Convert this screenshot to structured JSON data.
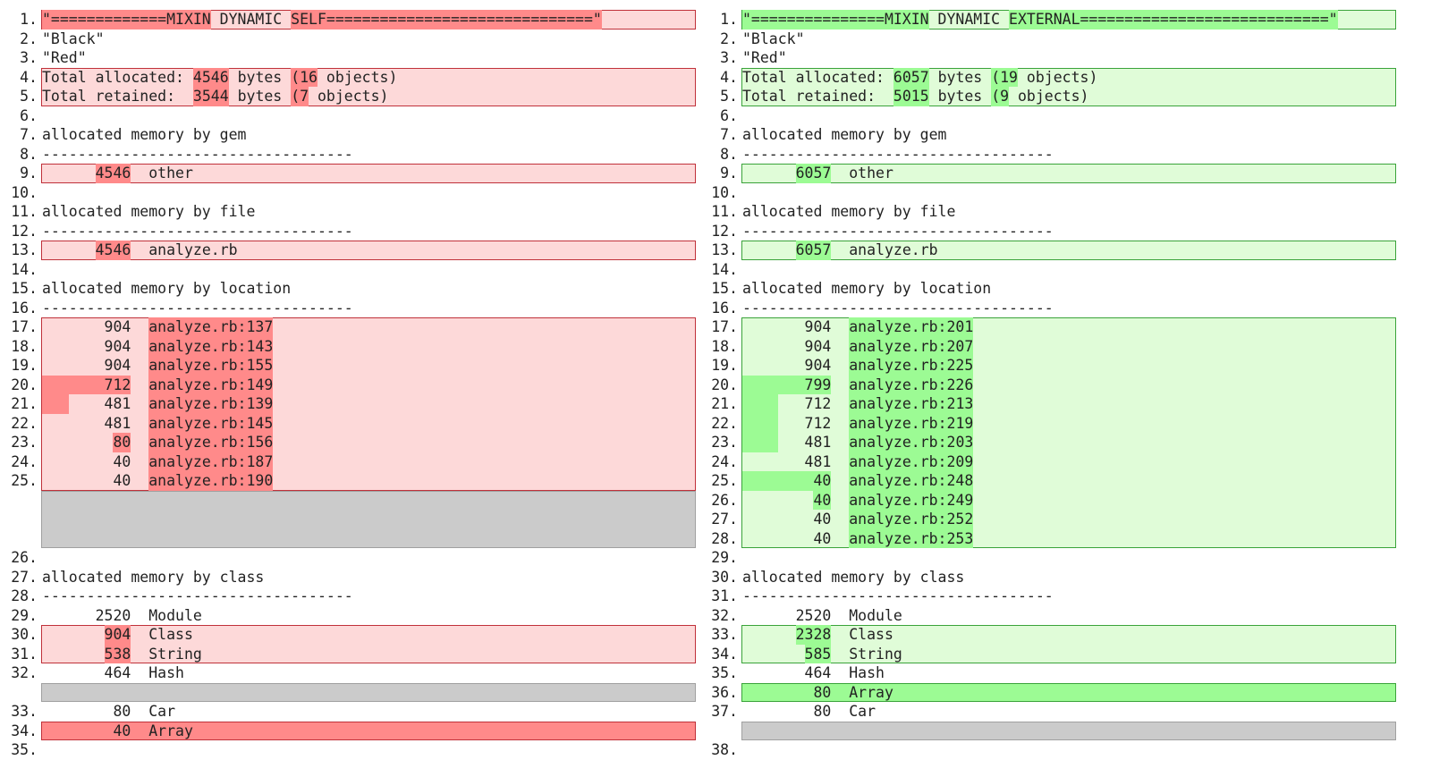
{
  "left": {
    "rows": [
      {
        "num": "1.",
        "kind": "changed",
        "parts": [
          {
            "text": "\"=============MIXIN",
            "mark": true
          },
          {
            "text": " DYNAMIC "
          },
          {
            "text": "SELF==============================\"",
            "mark": true
          }
        ]
      },
      {
        "num": "2.",
        "kind": "same",
        "parts": [
          {
            "text": "\"Black\""
          }
        ]
      },
      {
        "num": "3.",
        "kind": "same",
        "parts": [
          {
            "text": "\"Red\""
          }
        ]
      },
      {
        "num": "4.",
        "kind": "changed",
        "parts": [
          {
            "text": "Total allocated: "
          },
          {
            "text": "4546",
            "mark": true
          },
          {
            "text": " bytes "
          },
          {
            "text": "(16",
            "mark": true
          },
          {
            "text": " objects)"
          }
        ]
      },
      {
        "num": "5.",
        "kind": "changed",
        "parts": [
          {
            "text": "Total retained:  "
          },
          {
            "text": "3544",
            "mark": true
          },
          {
            "text": " bytes "
          },
          {
            "text": "(7",
            "mark": true
          },
          {
            "text": " objects)"
          }
        ]
      },
      {
        "num": "6.",
        "kind": "same",
        "parts": []
      },
      {
        "num": "7.",
        "kind": "same",
        "parts": [
          {
            "text": "allocated memory by gem"
          }
        ]
      },
      {
        "num": "8.",
        "kind": "same",
        "parts": [
          {
            "text": "-----------------------------------"
          }
        ]
      },
      {
        "num": "9.",
        "kind": "changed",
        "parts": [
          {
            "text": "      "
          },
          {
            "text": "4546",
            "mark": true
          },
          {
            "text": "  other"
          }
        ]
      },
      {
        "num": "10.",
        "kind": "same",
        "parts": []
      },
      {
        "num": "11.",
        "kind": "same",
        "parts": [
          {
            "text": "allocated memory by file"
          }
        ]
      },
      {
        "num": "12.",
        "kind": "same",
        "parts": [
          {
            "text": "-----------------------------------"
          }
        ]
      },
      {
        "num": "13.",
        "kind": "changed",
        "parts": [
          {
            "text": "      "
          },
          {
            "text": "4546",
            "mark": true
          },
          {
            "text": "  analyze.rb"
          }
        ]
      },
      {
        "num": "14.",
        "kind": "same",
        "parts": []
      },
      {
        "num": "15.",
        "kind": "same",
        "parts": [
          {
            "text": "allocated memory by location"
          }
        ]
      },
      {
        "num": "16.",
        "kind": "same",
        "parts": [
          {
            "text": "-----------------------------------"
          }
        ]
      },
      {
        "num": "17.",
        "kind": "changed",
        "parts": [
          {
            "text": "       904  "
          },
          {
            "text": "analyze.rb:137",
            "mark": true
          }
        ]
      },
      {
        "num": "18.",
        "kind": "changed",
        "parts": [
          {
            "text": "       904  "
          },
          {
            "text": "analyze.rb:143",
            "mark": true
          }
        ]
      },
      {
        "num": "19.",
        "kind": "changed",
        "parts": [
          {
            "text": "       904  "
          },
          {
            "text": "analyze.rb:155",
            "mark": true
          }
        ]
      },
      {
        "num": "20.",
        "kind": "changed",
        "parts": [
          {
            "text": "       712",
            "mark": true
          },
          {
            "text": "  "
          },
          {
            "text": "analyze.rb:149",
            "mark": true
          }
        ]
      },
      {
        "num": "21.",
        "kind": "changed",
        "parts": [
          {
            "text": "   ",
            "mark": true
          },
          {
            "text": "    481  "
          },
          {
            "text": "analyze.rb:139",
            "mark": true
          }
        ]
      },
      {
        "num": "22.",
        "kind": "changed",
        "parts": [
          {
            "text": "       481  "
          },
          {
            "text": "analyze.rb:145",
            "mark": true
          }
        ]
      },
      {
        "num": "23.",
        "kind": "changed",
        "parts": [
          {
            "text": "        "
          },
          {
            "text": "80",
            "mark": true
          },
          {
            "text": "  "
          },
          {
            "text": "analyze.rb:156",
            "mark": true
          }
        ]
      },
      {
        "num": "24.",
        "kind": "changed",
        "parts": [
          {
            "text": "        40  "
          },
          {
            "text": "analyze.rb:187",
            "mark": true
          }
        ]
      },
      {
        "num": "25.",
        "kind": "changed",
        "parts": [
          {
            "text": "        40  "
          },
          {
            "text": "analyze.rb:190",
            "mark": true
          }
        ]
      },
      {
        "kind": "filler"
      },
      {
        "kind": "filler"
      },
      {
        "kind": "filler"
      },
      {
        "num": "26.",
        "kind": "same",
        "parts": []
      },
      {
        "num": "27.",
        "kind": "same",
        "parts": [
          {
            "text": "allocated memory by class"
          }
        ]
      },
      {
        "num": "28.",
        "kind": "same",
        "parts": [
          {
            "text": "-----------------------------------"
          }
        ]
      },
      {
        "num": "29.",
        "kind": "same",
        "parts": [
          {
            "text": "      2520  Module"
          }
        ]
      },
      {
        "num": "30.",
        "kind": "changed",
        "parts": [
          {
            "text": "       "
          },
          {
            "text": "904",
            "mark": true
          },
          {
            "text": "  Class"
          }
        ]
      },
      {
        "num": "31.",
        "kind": "changed",
        "parts": [
          {
            "text": "       "
          },
          {
            "text": "538",
            "mark": true
          },
          {
            "text": "  String"
          }
        ]
      },
      {
        "num": "32.",
        "kind": "same",
        "parts": [
          {
            "text": "       464  Hash"
          }
        ]
      },
      {
        "kind": "filler"
      },
      {
        "num": "33.",
        "kind": "same",
        "parts": [
          {
            "text": "        80  Car"
          }
        ]
      },
      {
        "num": "34.",
        "kind": "strong",
        "parts": [
          {
            "text": "        40  Array"
          }
        ]
      },
      {
        "num": "35.",
        "kind": "same",
        "parts": []
      }
    ]
  },
  "right": {
    "rows": [
      {
        "num": "1.",
        "kind": "changed",
        "parts": [
          {
            "text": "\"===============MIXIN",
            "mark": true
          },
          {
            "text": " DYNAMIC "
          },
          {
            "text": "EXTERNAL============================\"",
            "mark": true
          }
        ]
      },
      {
        "num": "2.",
        "kind": "same",
        "parts": [
          {
            "text": "\"Black\""
          }
        ]
      },
      {
        "num": "3.",
        "kind": "same",
        "parts": [
          {
            "text": "\"Red\""
          }
        ]
      },
      {
        "num": "4.",
        "kind": "changed",
        "parts": [
          {
            "text": "Total allocated: "
          },
          {
            "text": "6057",
            "mark": true
          },
          {
            "text": " bytes "
          },
          {
            "text": "(19",
            "mark": true
          },
          {
            "text": " objects)"
          }
        ]
      },
      {
        "num": "5.",
        "kind": "changed",
        "parts": [
          {
            "text": "Total retained:  "
          },
          {
            "text": "5015",
            "mark": true
          },
          {
            "text": " bytes "
          },
          {
            "text": "(9",
            "mark": true
          },
          {
            "text": " objects)"
          }
        ]
      },
      {
        "num": "6.",
        "kind": "same",
        "parts": []
      },
      {
        "num": "7.",
        "kind": "same",
        "parts": [
          {
            "text": "allocated memory by gem"
          }
        ]
      },
      {
        "num": "8.",
        "kind": "same",
        "parts": [
          {
            "text": "-----------------------------------"
          }
        ]
      },
      {
        "num": "9.",
        "kind": "changed",
        "parts": [
          {
            "text": "      "
          },
          {
            "text": "6057",
            "mark": true
          },
          {
            "text": "  other"
          }
        ]
      },
      {
        "num": "10.",
        "kind": "same",
        "parts": []
      },
      {
        "num": "11.",
        "kind": "same",
        "parts": [
          {
            "text": "allocated memory by file"
          }
        ]
      },
      {
        "num": "12.",
        "kind": "same",
        "parts": [
          {
            "text": "-----------------------------------"
          }
        ]
      },
      {
        "num": "13.",
        "kind": "changed",
        "parts": [
          {
            "text": "      "
          },
          {
            "text": "6057",
            "mark": true
          },
          {
            "text": "  analyze.rb"
          }
        ]
      },
      {
        "num": "14.",
        "kind": "same",
        "parts": []
      },
      {
        "num": "15.",
        "kind": "same",
        "parts": [
          {
            "text": "allocated memory by location"
          }
        ]
      },
      {
        "num": "16.",
        "kind": "same",
        "parts": [
          {
            "text": "-----------------------------------"
          }
        ]
      },
      {
        "num": "17.",
        "kind": "changed",
        "parts": [
          {
            "text": "       904  "
          },
          {
            "text": "analyze.rb:201",
            "mark": true
          }
        ]
      },
      {
        "num": "18.",
        "kind": "changed",
        "parts": [
          {
            "text": "       904  "
          },
          {
            "text": "analyze.rb:207",
            "mark": true
          }
        ]
      },
      {
        "num": "19.",
        "kind": "changed",
        "parts": [
          {
            "text": "       904  "
          },
          {
            "text": "analyze.rb:225",
            "mark": true
          }
        ]
      },
      {
        "num": "20.",
        "kind": "changed",
        "parts": [
          {
            "text": "       799",
            "mark": true
          },
          {
            "text": "  "
          },
          {
            "text": "analyze.rb:226",
            "mark": true
          }
        ]
      },
      {
        "num": "21.",
        "kind": "changed",
        "parts": [
          {
            "text": "    ",
            "mark": true
          },
          {
            "text": "   712  "
          },
          {
            "text": "analyze.rb:213",
            "mark": true
          }
        ]
      },
      {
        "num": "22.",
        "kind": "changed",
        "parts": [
          {
            "text": "    ",
            "mark": true
          },
          {
            "text": "   712  "
          },
          {
            "text": "analyze.rb:219",
            "mark": true
          }
        ]
      },
      {
        "num": "23.",
        "kind": "changed",
        "parts": [
          {
            "text": "    ",
            "mark": true
          },
          {
            "text": "   481  "
          },
          {
            "text": "analyze.rb:203",
            "mark": true
          }
        ]
      },
      {
        "num": "24.",
        "kind": "changed",
        "parts": [
          {
            "text": "       481  "
          },
          {
            "text": "analyze.rb:209",
            "mark": true
          }
        ]
      },
      {
        "num": "25.",
        "kind": "changed",
        "parts": [
          {
            "text": "        40",
            "mark": true
          },
          {
            "text": "  "
          },
          {
            "text": "analyze.rb:248",
            "mark": true
          }
        ]
      },
      {
        "num": "26.",
        "kind": "changed",
        "parts": [
          {
            "text": "        "
          },
          {
            "text": "40",
            "mark": true
          },
          {
            "text": "  "
          },
          {
            "text": "analyze.rb:249",
            "mark": true
          }
        ]
      },
      {
        "num": "27.",
        "kind": "changed",
        "parts": [
          {
            "text": "        40  "
          },
          {
            "text": "analyze.rb:252",
            "mark": true
          }
        ]
      },
      {
        "num": "28.",
        "kind": "changed",
        "parts": [
          {
            "text": "        40  "
          },
          {
            "text": "analyze.rb:253",
            "mark": true
          }
        ]
      },
      {
        "num": "29.",
        "kind": "same",
        "parts": []
      },
      {
        "num": "30.",
        "kind": "same",
        "parts": [
          {
            "text": "allocated memory by class"
          }
        ]
      },
      {
        "num": "31.",
        "kind": "same",
        "parts": [
          {
            "text": "-----------------------------------"
          }
        ]
      },
      {
        "num": "32.",
        "kind": "same",
        "parts": [
          {
            "text": "      2520  Module"
          }
        ]
      },
      {
        "num": "33.",
        "kind": "changed",
        "parts": [
          {
            "text": "      "
          },
          {
            "text": "2328",
            "mark": true
          },
          {
            "text": "  Class"
          }
        ]
      },
      {
        "num": "34.",
        "kind": "changed",
        "parts": [
          {
            "text": "       "
          },
          {
            "text": "585",
            "mark": true
          },
          {
            "text": "  String"
          }
        ]
      },
      {
        "num": "35.",
        "kind": "same",
        "parts": [
          {
            "text": "       464  Hash"
          }
        ]
      },
      {
        "num": "36.",
        "kind": "strong",
        "parts": [
          {
            "text": "        80  Array"
          }
        ]
      },
      {
        "num": "37.",
        "kind": "same",
        "parts": [
          {
            "text": "        80  Car"
          }
        ]
      },
      {
        "kind": "filler"
      },
      {
        "num": "38.",
        "kind": "same",
        "parts": []
      }
    ]
  }
}
